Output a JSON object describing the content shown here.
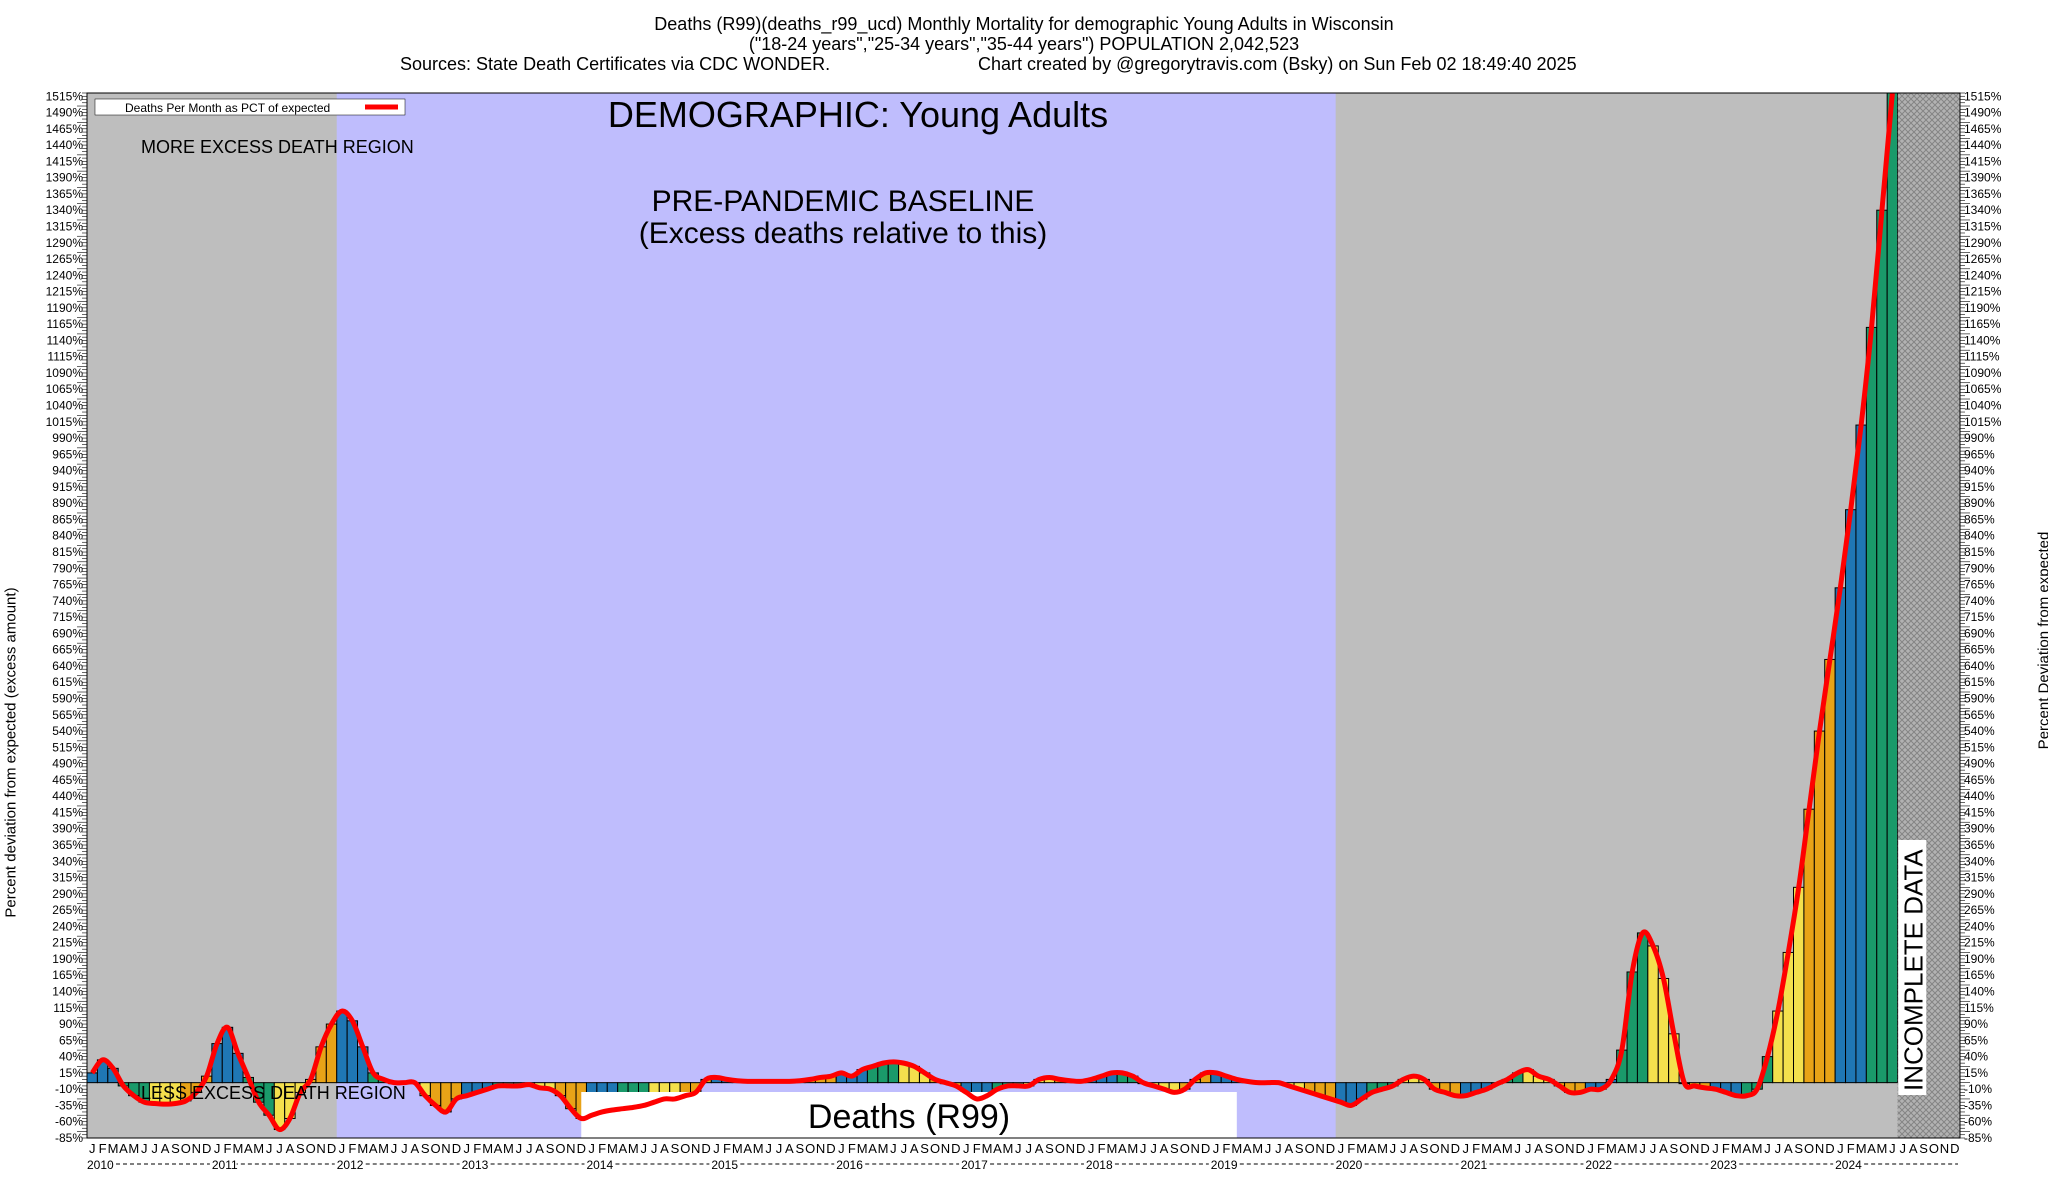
{
  "header": {
    "title_line1": "Deaths (R99)(deaths_r99_ucd) Monthly Mortality for demographic Young Adults in Wisconsin",
    "title_line2": "(\"18-24 years\",\"25-34 years\",\"35-44 years\") POPULATION 2,042,523",
    "sources": "Sources: State Death Certificates via CDC WONDER.",
    "credit": "Chart created by @gregorytravis.com (Bsky) on Sun Feb 02 18:49:40 2025"
  },
  "chart_data": {
    "type": "bar",
    "title": "DEMOGRAPHIC: Young Adults",
    "ylabel_left": "Percent deviation from expected (excess amount)",
    "ylabel_right": "Percent Deviation from expected",
    "legend": {
      "label": "Deaths Per Month as PCT of expected",
      "color": "#ff0000",
      "position": "top-left"
    },
    "annotations": {
      "more_excess": "MORE EXCESS DEATH REGION",
      "less_excess": "LESS EXCESS DEATH REGION",
      "baseline_line1": "PRE-PANDEMIC BASELINE",
      "baseline_line2": "(Excess deaths relative to this)",
      "incomplete": "INCOMPLETE DATA",
      "cause_label": "Deaths (R99)"
    },
    "ylim": [
      -85,
      1520
    ],
    "x_start": "2010-01",
    "months_per_year": 12,
    "year_labels": [
      "2010",
      "2011",
      "2012",
      "2013",
      "2014",
      "2015",
      "2016",
      "2017",
      "2018",
      "2019",
      "2020",
      "2021",
      "2022",
      "2023",
      "2024"
    ],
    "month_letters": [
      "J",
      "F",
      "M",
      "A",
      "M",
      "J",
      "J",
      "A",
      "S",
      "O",
      "N",
      "D"
    ],
    "baseline_period": [
      "2012-01",
      "2019-12"
    ],
    "incomplete_period": [
      "2024-07",
      "2024-12"
    ],
    "quarter_colors": [
      "#1f77b4",
      "#1a9a6a",
      "#f4e04d",
      "#e8a317"
    ],
    "values": [
      15,
      35,
      22,
      -5,
      -20,
      -30,
      -32,
      -33,
      -32,
      -28,
      -15,
      10,
      60,
      85,
      45,
      8,
      -30,
      -50,
      -72,
      -55,
      -15,
      5,
      55,
      90,
      110,
      95,
      55,
      15,
      5,
      0,
      0,
      0,
      -20,
      -35,
      -45,
      -25,
      -20,
      -15,
      -10,
      -5,
      -5,
      -5,
      -3,
      -8,
      -10,
      -20,
      -40,
      -55,
      -50,
      -45,
      -42,
      -40,
      -38,
      -35,
      -30,
      -25,
      -25,
      -20,
      -15,
      5,
      8,
      5,
      3,
      2,
      2,
      2,
      2,
      2,
      3,
      5,
      8,
      10,
      15,
      10,
      20,
      25,
      30,
      32,
      30,
      25,
      15,
      5,
      0,
      -5,
      -15,
      -25,
      -20,
      -10,
      -5,
      -5,
      -5,
      5,
      8,
      5,
      3,
      2,
      5,
      10,
      15,
      15,
      10,
      0,
      -5,
      -10,
      -15,
      -10,
      5,
      15,
      15,
      10,
      5,
      2,
      0,
      0,
      0,
      -5,
      -10,
      -15,
      -20,
      -25,
      -30,
      -35,
      -25,
      -15,
      -10,
      -5,
      5,
      10,
      5,
      -10,
      -15,
      -20,
      -20,
      -15,
      -10,
      -2,
      5,
      15,
      20,
      10,
      5,
      -5,
      -15,
      -15,
      -10,
      -10,
      5,
      50,
      170,
      230,
      210,
      160,
      75,
      0,
      -5,
      -8,
      -10,
      -15,
      -20,
      -20,
      -10,
      40,
      110,
      200,
      300,
      420,
      540,
      650,
      760,
      880,
      1010,
      1160,
      1340,
      1520
    ]
  }
}
